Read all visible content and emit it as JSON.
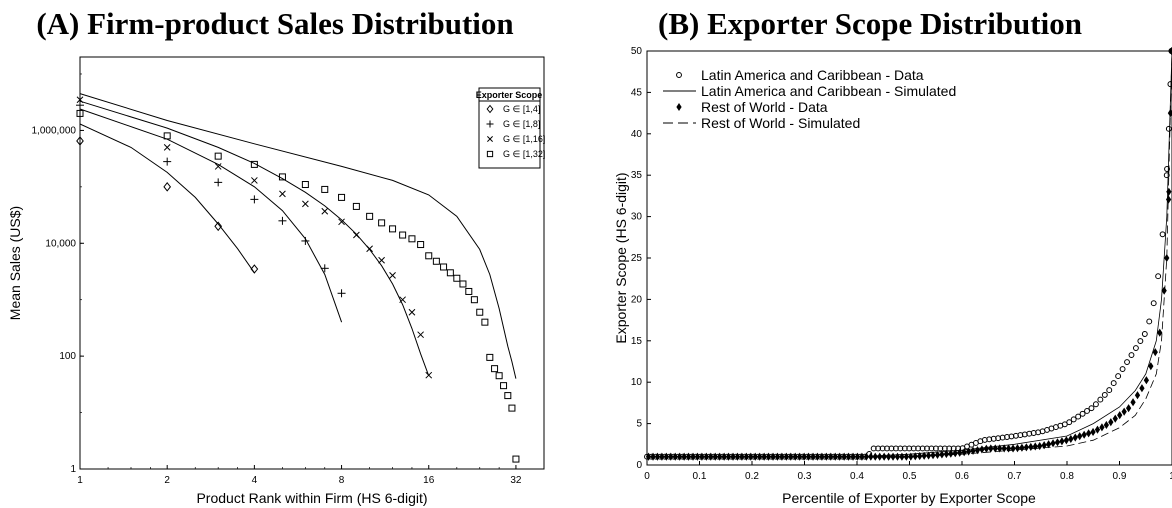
{
  "chart_data": [
    {
      "type": "scatter",
      "title": "(A) Firm-product Sales Distribution",
      "xlabel": "Product Rank within Firm (HS 6-digit)",
      "ylabel": "Mean Sales (US$)",
      "xscale": "log2",
      "yscale": "log10",
      "xlim": [
        1,
        40
      ],
      "ylim": [
        1,
        20000000
      ],
      "xticks": [
        1,
        2,
        4,
        8,
        16,
        32
      ],
      "xtick_labels": [
        "1",
        "2",
        "4",
        "8",
        "16",
        "32"
      ],
      "yticks": [
        1,
        100,
        10000,
        1000000
      ],
      "ytick_labels": [
        "1",
        "100",
        "10,000",
        "1,000,000"
      ],
      "grid": false,
      "legend_title": "Exporter Scope",
      "legend_position": "top-right",
      "series": [
        {
          "name": "G ∈ [1,4]",
          "marker": "diamond",
          "data_x": [
            1,
            2,
            3,
            4
          ],
          "data_y": [
            650000,
            100000,
            20000,
            3500
          ],
          "sim_x": [
            1,
            1.5,
            2,
            2.5,
            3,
            3.5,
            4
          ],
          "sim_y": [
            1300000,
            500000,
            180000,
            65000,
            22000,
            8000,
            3000
          ]
        },
        {
          "name": "G ∈ [1,8]",
          "marker": "plus",
          "data_x": [
            1,
            2,
            3,
            4,
            5,
            6,
            7,
            8
          ],
          "data_y": [
            2800000,
            280000,
            120000,
            60000,
            25000,
            11000,
            3600,
            1300
          ],
          "sim_x": [
            1,
            2,
            3,
            4,
            5,
            6,
            7,
            8
          ],
          "sim_y": [
            2400000,
            700000,
            250000,
            100000,
            38000,
            12000,
            2800,
            400
          ]
        },
        {
          "name": "G ∈ [1,16]",
          "marker": "x",
          "data_x": [
            1,
            2,
            3,
            4,
            5,
            6,
            7,
            8,
            9,
            10,
            11,
            12,
            13,
            14,
            15,
            16
          ],
          "data_y": [
            3500000,
            500000,
            230000,
            130000,
            75000,
            50000,
            37000,
            24000,
            14000,
            8000,
            5000,
            2700,
            1000,
            600,
            240,
            46
          ],
          "sim_x": [
            1,
            2,
            3,
            4,
            5,
            6,
            7,
            8,
            9,
            10,
            11,
            12,
            13,
            14,
            15,
            16
          ],
          "sim_y": [
            3300000,
            1100000,
            500000,
            260000,
            140000,
            80000,
            46000,
            26000,
            14500,
            7800,
            4000,
            1900,
            820,
            310,
            110,
            45
          ]
        },
        {
          "name": "G ∈ [1,32]",
          "marker": "square",
          "data_x": [
            1,
            2,
            3,
            4,
            5,
            6,
            7,
            8,
            9,
            10,
            11,
            12,
            13,
            14,
            15,
            16,
            17,
            18,
            19,
            20,
            21,
            22,
            23,
            24,
            25,
            26,
            27,
            28,
            29,
            30,
            31,
            32
          ],
          "data_y": [
            2000000,
            800000,
            350000,
            250000,
            150000,
            110000,
            90000,
            65000,
            45000,
            30000,
            23000,
            18000,
            14000,
            12000,
            9500,
            6000,
            4800,
            3800,
            3000,
            2400,
            1900,
            1400,
            1000,
            600,
            400,
            95,
            60,
            45,
            30,
            20,
            12,
            1.5
          ],
          "sim_x": [
            1,
            2,
            4,
            8,
            12,
            16,
            20,
            24,
            26,
            28,
            30,
            31,
            32
          ],
          "sim_y": [
            4500000,
            1500000,
            580000,
            230000,
            130000,
            72000,
            30000,
            7800,
            2800,
            700,
            150,
            80,
            40
          ]
        }
      ]
    },
    {
      "type": "line",
      "title": "(B) Exporter Scope Distribution",
      "xlabel": "Percentile of Exporter by Exporter Scope",
      "ylabel": "Exporter Scope (HS 6-digit)",
      "xlim": [
        0,
        1
      ],
      "ylim": [
        0,
        50
      ],
      "xticks": [
        0,
        0.1,
        0.2,
        0.3,
        0.4,
        0.5,
        0.6,
        0.7,
        0.8,
        0.9,
        1
      ],
      "xtick_labels": [
        "0",
        "0.1",
        "0.2",
        "0.3",
        "0.4",
        "0.5",
        "0.6",
        "0.7",
        "0.8",
        "0.9",
        "1"
      ],
      "yticks": [
        0,
        5,
        10,
        15,
        20,
        25,
        30,
        35,
        40,
        45,
        50
      ],
      "ytick_labels": [
        "0",
        "5",
        "10",
        "15",
        "20",
        "25",
        "30",
        "35",
        "40",
        "45",
        "50"
      ],
      "grid": false,
      "legend_position": "top-left",
      "series": [
        {
          "name": "Latin America and Caribbean - Data",
          "style": "circle-markers",
          "x": [
            0,
            0.05,
            0.1,
            0.15,
            0.2,
            0.25,
            0.3,
            0.35,
            0.4,
            0.42,
            0.43,
            0.5,
            0.55,
            0.6,
            0.62,
            0.64,
            0.7,
            0.75,
            0.8,
            0.85,
            0.88,
            0.9,
            0.92,
            0.93,
            0.94,
            0.95,
            0.96,
            0.97,
            0.98,
            0.99,
            0.995,
            0.999
          ],
          "y": [
            1,
            1,
            1,
            1,
            1,
            1,
            1,
            1,
            1,
            1,
            2,
            2,
            2,
            2,
            2.5,
            3,
            3.5,
            4,
            5,
            7,
            9,
            11,
            13,
            14,
            15,
            16,
            18,
            21,
            26,
            35,
            42,
            50
          ]
        },
        {
          "name": "Latin America and Caribbean - Simulated",
          "style": "solid",
          "x": [
            0,
            0.4,
            0.5,
            0.6,
            0.7,
            0.8,
            0.85,
            0.9,
            0.93,
            0.95,
            0.97,
            0.98,
            0.99,
            0.995,
            1
          ],
          "y": [
            1,
            1,
            1.3,
            1.8,
            2.5,
            3.5,
            5,
            7,
            9,
            11,
            15,
            20,
            30,
            40,
            50
          ]
        },
        {
          "name": "Rest of World - Data",
          "style": "diamond-markers",
          "x": [
            0,
            0.05,
            0.1,
            0.15,
            0.2,
            0.25,
            0.3,
            0.35,
            0.4,
            0.45,
            0.5,
            0.55,
            0.6,
            0.65,
            0.7,
            0.75,
            0.8,
            0.85,
            0.88,
            0.9,
            0.92,
            0.94,
            0.95,
            0.96,
            0.97,
            0.98,
            0.99,
            0.995,
            0.999
          ],
          "y": [
            1,
            1,
            1,
            1,
            1,
            1,
            1,
            1,
            1,
            1,
            1,
            1.2,
            1.5,
            2,
            2,
            2.3,
            3,
            4,
            5,
            6,
            7,
            9,
            10,
            12,
            14,
            17,
            25,
            35,
            50
          ]
        },
        {
          "name": "Rest of World - Simulated",
          "style": "dashed",
          "x": [
            0,
            0.5,
            0.6,
            0.7,
            0.8,
            0.85,
            0.9,
            0.93,
            0.95,
            0.97,
            0.98,
            0.99,
            0.995,
            1
          ],
          "y": [
            1,
            1,
            1.3,
            1.8,
            2.3,
            3,
            4.5,
            6,
            8,
            11,
            15,
            25,
            38,
            50
          ]
        }
      ]
    }
  ]
}
